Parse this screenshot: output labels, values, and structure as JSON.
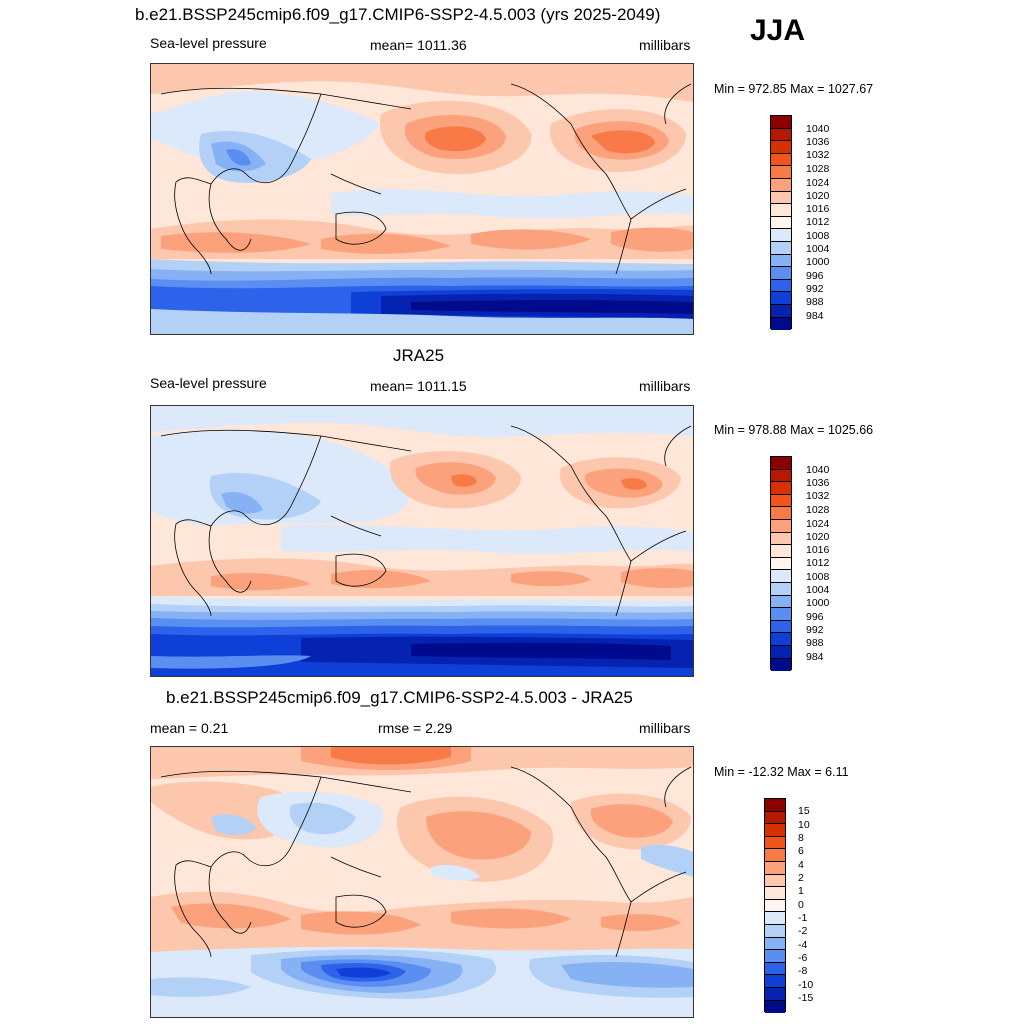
{
  "season": "JJA",
  "panels": [
    {
      "title": "b.e21.BSSP245cmip6.f09_g17.CMIP6-SSP2-4.5.003 (yrs 2025-2049)",
      "left_label": "Sea-level pressure",
      "center_label": "mean= 1011.36",
      "right_label": "millibars",
      "minmax": "Min = 972.85 Max = 1027.67",
      "colorbar_labels": [
        "1040",
        "1036",
        "1032",
        "1028",
        "1024",
        "1020",
        "1016",
        "1012",
        "1008",
        "1004",
        "1000",
        "996",
        "992",
        "988",
        "984"
      ],
      "colors": [
        "#8c0000",
        "#b51a00",
        "#d93000",
        "#f2541e",
        "#f77a47",
        "#fba27c",
        "#fdc7ad",
        "#fee6d9",
        "#fff6ef",
        "#dbe9fa",
        "#b3d1f7",
        "#86b2f5",
        "#5a8ef0",
        "#2c63ea",
        "#0e3fd6",
        "#0622b0",
        "#000a8c"
      ]
    },
    {
      "title": "JRA25",
      "left_label": "Sea-level pressure",
      "center_label": "mean= 1011.15",
      "right_label": "millibars",
      "minmax": "Min = 978.88 Max = 1025.66",
      "colorbar_labels": [
        "1040",
        "1036",
        "1032",
        "1028",
        "1024",
        "1020",
        "1016",
        "1012",
        "1008",
        "1004",
        "1000",
        "996",
        "992",
        "988",
        "984"
      ],
      "colors": [
        "#8c0000",
        "#b51a00",
        "#d93000",
        "#f2541e",
        "#f77a47",
        "#fba27c",
        "#fdc7ad",
        "#fee6d9",
        "#fff6ef",
        "#dbe9fa",
        "#b3d1f7",
        "#86b2f5",
        "#5a8ef0",
        "#2c63ea",
        "#0e3fd6",
        "#0622b0",
        "#000a8c"
      ]
    },
    {
      "title": "b.e21.BSSP245cmip6.f09_g17.CMIP6-SSP2-4.5.003 - JRA25",
      "left_label": "mean =   0.21",
      "center_label": "rmse =   2.29",
      "right_label": "millibars",
      "minmax": "Min = -12.32 Max =   6.11",
      "colorbar_labels": [
        "15",
        "10",
        "8",
        "6",
        "4",
        "2",
        "1",
        "0",
        "-1",
        "-2",
        "-4",
        "-6",
        "-8",
        "-10",
        "-15"
      ],
      "colors": [
        "#8c0000",
        "#b51a00",
        "#d93000",
        "#f2541e",
        "#f77a47",
        "#fba27c",
        "#fdc7ad",
        "#fee6d9",
        "#fff6ef",
        "#dbe9fa",
        "#b3d1f7",
        "#86b2f5",
        "#5a8ef0",
        "#2c63ea",
        "#0e3fd6",
        "#0622b0",
        "#000a8c"
      ]
    }
  ]
}
